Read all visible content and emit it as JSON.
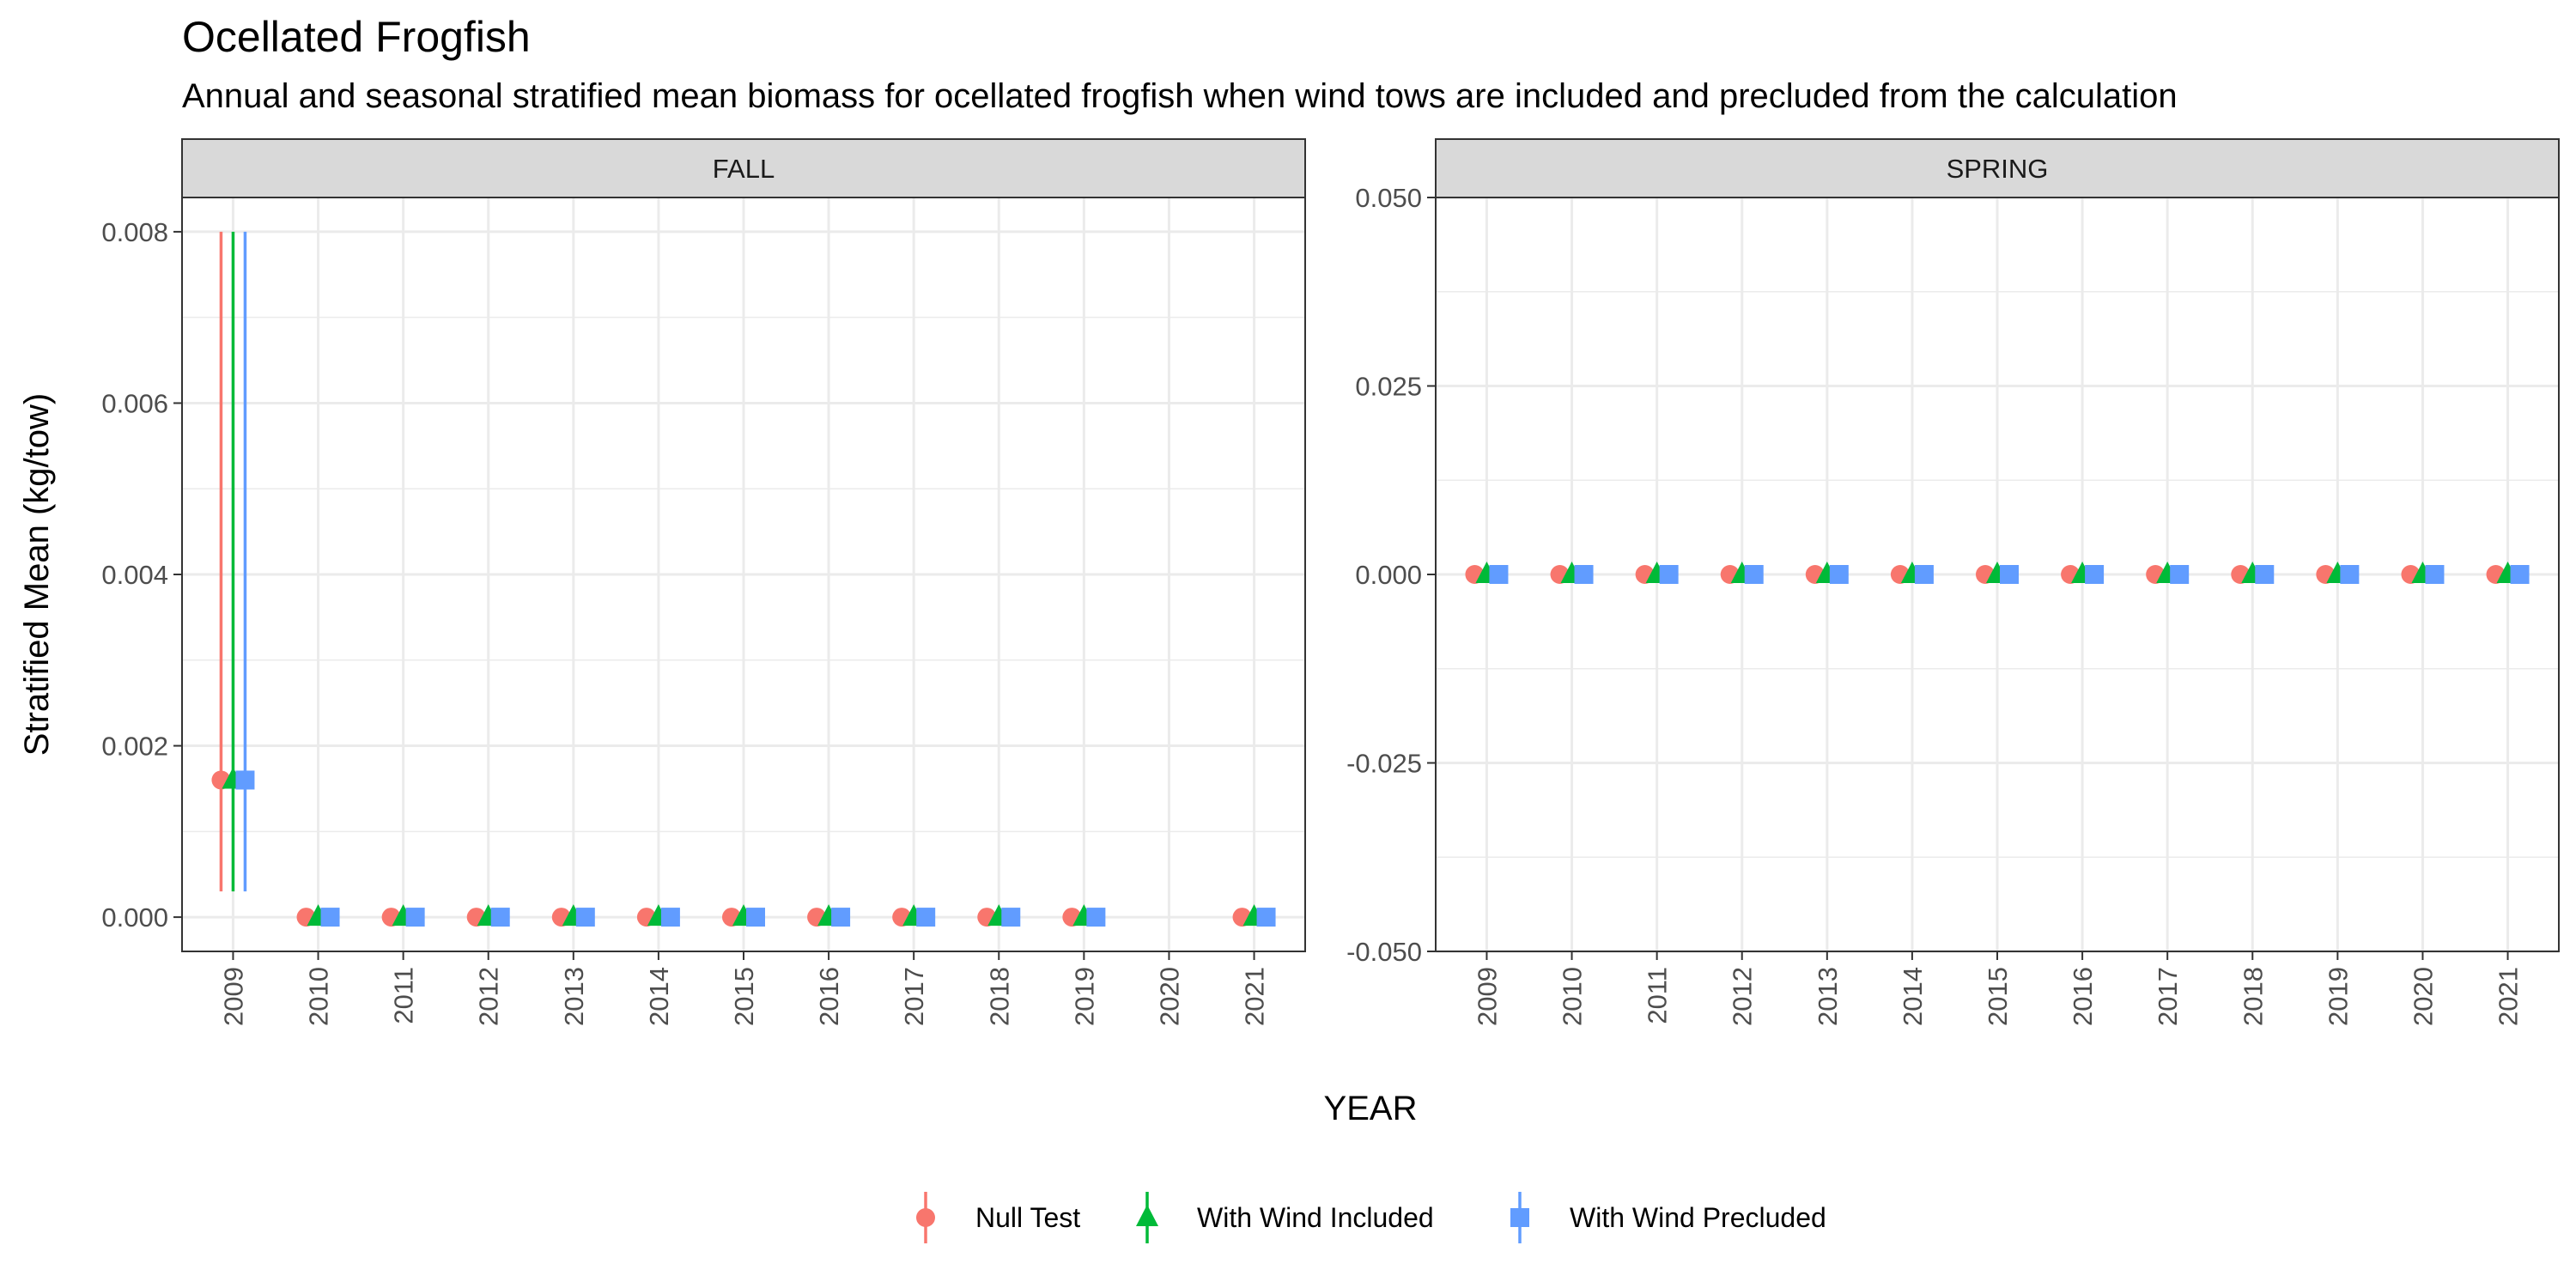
{
  "chart_data": {
    "type": "scatter",
    "title": "Ocellated Frogfish",
    "subtitle": "Annual and seasonal stratified mean biomass for ocellated frogfish when wind tows are included and precluded from the calculation",
    "xlabel": "YEAR",
    "ylabel": "Stratified Mean (kg/tow)",
    "legend_position": "bottom",
    "grid": true,
    "x_ticks": [
      "2009",
      "2010",
      "2011",
      "2012",
      "2013",
      "2014",
      "2015",
      "2016",
      "2017",
      "2018",
      "2019",
      "2020",
      "2021"
    ],
    "series_meta": [
      {
        "name": "Null Test",
        "color": "#F8766D",
        "shape": "circle"
      },
      {
        "name": "With Wind Included",
        "color": "#00BA38",
        "shape": "triangle"
      },
      {
        "name": "With Wind Precluded",
        "color": "#619CFF",
        "shape": "square"
      }
    ],
    "panels": [
      {
        "strip": "FALL",
        "ylim": [
          -0.0004,
          0.0084
        ],
        "y_ticks": [
          "0.000",
          "0.002",
          "0.004",
          "0.006",
          "0.008"
        ],
        "y_tick_values": [
          0,
          0.002,
          0.004,
          0.006,
          0.008
        ],
        "series": [
          {
            "name": "Null Test",
            "x": [
              2009,
              2010,
              2011,
              2012,
              2013,
              2014,
              2015,
              2016,
              2017,
              2018,
              2019,
              2021
            ],
            "y": [
              0.0016,
              0,
              0,
              0,
              0,
              0,
              0,
              0,
              0,
              0,
              0,
              0
            ],
            "ymin": [
              0.0003,
              0,
              0,
              0,
              0,
              0,
              0,
              0,
              0,
              0,
              0,
              0
            ],
            "ymax": [
              0.008,
              0,
              0,
              0,
              0,
              0,
              0,
              0,
              0,
              0,
              0,
              0
            ]
          },
          {
            "name": "With Wind Included",
            "x": [
              2009,
              2010,
              2011,
              2012,
              2013,
              2014,
              2015,
              2016,
              2017,
              2018,
              2019,
              2021
            ],
            "y": [
              0.0016,
              0,
              0,
              0,
              0,
              0,
              0,
              0,
              0,
              0,
              0,
              0
            ],
            "ymin": [
              0.0003,
              0,
              0,
              0,
              0,
              0,
              0,
              0,
              0,
              0,
              0,
              0
            ],
            "ymax": [
              0.008,
              0,
              0,
              0,
              0,
              0,
              0,
              0,
              0,
              0,
              0,
              0
            ]
          },
          {
            "name": "With Wind Precluded",
            "x": [
              2009,
              2010,
              2011,
              2012,
              2013,
              2014,
              2015,
              2016,
              2017,
              2018,
              2019,
              2021
            ],
            "y": [
              0.0016,
              0,
              0,
              0,
              0,
              0,
              0,
              0,
              0,
              0,
              0,
              0
            ],
            "ymin": [
              0.0003,
              0,
              0,
              0,
              0,
              0,
              0,
              0,
              0,
              0,
              0,
              0
            ],
            "ymax": [
              0.008,
              0,
              0,
              0,
              0,
              0,
              0,
              0,
              0,
              0,
              0,
              0
            ]
          }
        ]
      },
      {
        "strip": "SPRING",
        "ylim": [
          -0.05,
          0.05
        ],
        "y_ticks": [
          "0.050",
          "0.025",
          "0.000",
          "-0.025",
          "-0.050"
        ],
        "y_tick_values": [
          0.05,
          0.025,
          0,
          -0.025,
          -0.05
        ],
        "series": [
          {
            "name": "Null Test",
            "x": [
              2009,
              2010,
              2011,
              2012,
              2013,
              2014,
              2015,
              2016,
              2017,
              2018,
              2019,
              2020,
              2021
            ],
            "y": [
              0,
              0,
              0,
              0,
              0,
              0,
              0,
              0,
              0,
              0,
              0,
              0,
              0
            ]
          },
          {
            "name": "With Wind Included",
            "x": [
              2009,
              2010,
              2011,
              2012,
              2013,
              2014,
              2015,
              2016,
              2017,
              2018,
              2019,
              2020,
              2021
            ],
            "y": [
              0,
              0,
              0,
              0,
              0,
              0,
              0,
              0,
              0,
              0,
              0,
              0,
              0
            ]
          },
          {
            "name": "With Wind Precluded",
            "x": [
              2009,
              2010,
              2011,
              2012,
              2013,
              2014,
              2015,
              2016,
              2017,
              2018,
              2019,
              2020,
              2021
            ],
            "y": [
              0,
              0,
              0,
              0,
              0,
              0,
              0,
              0,
              0,
              0,
              0,
              0,
              0
            ]
          }
        ]
      }
    ]
  }
}
